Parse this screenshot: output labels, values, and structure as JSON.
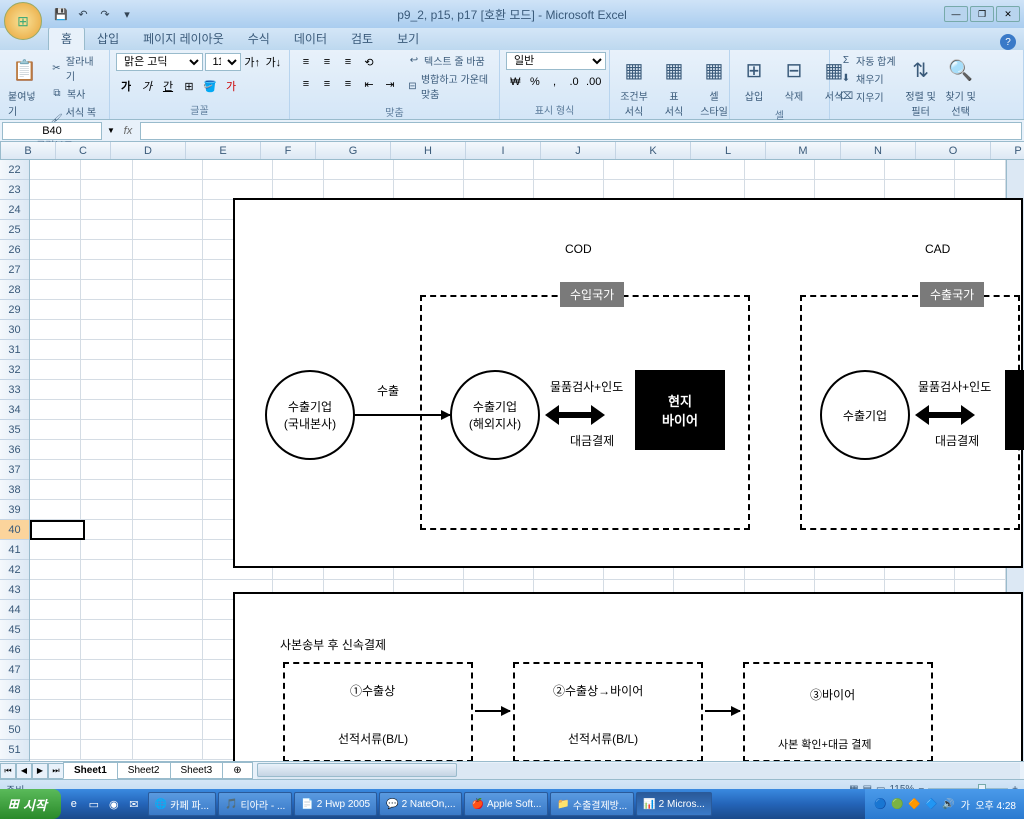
{
  "title": "p9_2, p15, p17  [호환 모드] - Microsoft Excel",
  "qat": [
    "💾",
    "↶",
    "↷",
    "▾"
  ],
  "tabs": [
    "홈",
    "삽입",
    "페이지 레이아웃",
    "수식",
    "데이터",
    "검토",
    "보기"
  ],
  "ribbon": {
    "clipboard": {
      "label": "클립보드",
      "paste": "붙여넣기",
      "cut": "잘라내기",
      "copy": "복사",
      "format_painter": "서식 복사"
    },
    "font": {
      "label": "글꼴",
      "family": "맑은 고딕",
      "size": "11"
    },
    "align": {
      "label": "맞춤",
      "wrap": "텍스트 줄 바꿈",
      "merge": "병합하고 가운데 맞춤"
    },
    "number": {
      "label": "표시 형식",
      "format": "일반"
    },
    "styles": {
      "label": "스타일",
      "cond": "조건부\n서식",
      "table": "표\n서식",
      "cell": "셀\n스타일"
    },
    "cells": {
      "label": "셀",
      "insert": "삽입",
      "delete": "삭제",
      "format": "서식"
    },
    "editing": {
      "label": "편집",
      "autosum": "자동 합계",
      "fill": "채우기",
      "clear": "지우기",
      "sort": "정렬 및\n필터",
      "find": "찾기 및\n선택"
    }
  },
  "name_box": "B40",
  "columns": [
    "B",
    "C",
    "D",
    "E",
    "F",
    "G",
    "H",
    "I",
    "J",
    "K",
    "L",
    "M",
    "N",
    "O",
    "P"
  ],
  "rows": [
    22,
    23,
    24,
    25,
    26,
    27,
    28,
    29,
    30,
    31,
    32,
    33,
    34,
    35,
    36,
    37,
    38,
    39,
    40,
    41,
    42,
    43,
    44,
    45,
    46,
    47,
    48,
    49,
    50,
    51
  ],
  "selected_row": 40,
  "diagram": {
    "cod_title": "COD",
    "cad_title": "CAD",
    "import_country": "수입국가",
    "export_country": "수출국가",
    "node1": {
      "l1": "수출기업",
      "l2": "(국내본사)"
    },
    "node2": {
      "l1": "수출기업",
      "l2": "(해외지사)"
    },
    "node3": "수출기업",
    "export_arrow": "수출",
    "inspect_delivery": "물품검사+인도",
    "payment": "대금결제",
    "buyer": {
      "l1": "현지",
      "l2": "바이어"
    },
    "section2_title": "사본송부 후 신속결제",
    "col1_title": "①수출상",
    "col2_title": "②수출상→바이어",
    "col3_title": "③바이어",
    "doc_label": "선적서류(B/L)",
    "col3_sub": "사본 확인+대금 결제"
  },
  "sheets": [
    "Sheet1",
    "Sheet2",
    "Sheet3"
  ],
  "status": "준비",
  "zoom": "115%",
  "taskbar": {
    "start": "시작",
    "items": [
      "카페 파...",
      "티아라 - ...",
      "2 Hwp 2005",
      "2 NateOn,...",
      "Apple Soft...",
      "수출결제방...",
      "2 Micros..."
    ],
    "clock": "오후 4:28"
  }
}
